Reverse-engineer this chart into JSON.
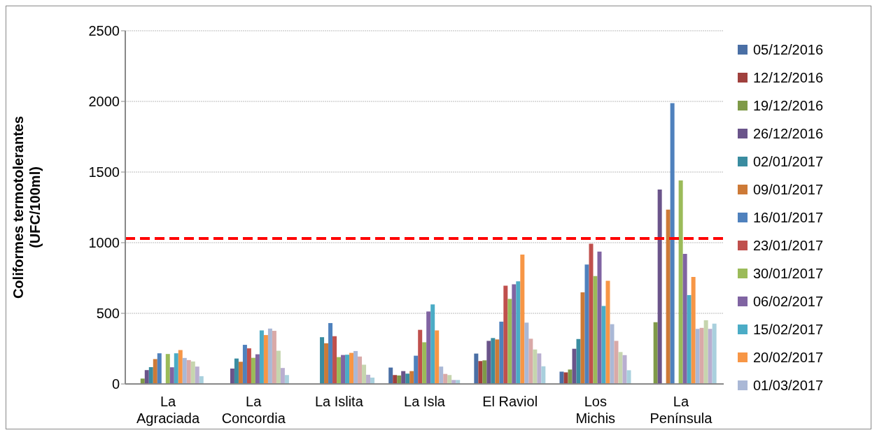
{
  "chart_data": {
    "type": "bar",
    "ylabel": "Coliformes termotolerantes\n(UFC/100ml)",
    "categories": [
      "La Agraciada",
      "La Concordia",
      "La Islita",
      "La Isla",
      "El Raviol",
      "Los Michis",
      "La Península"
    ],
    "series": [
      {
        "name": "05/12/2016",
        "color": "#4a6fa5",
        "values": [
          null,
          null,
          null,
          116,
          215,
          87,
          null
        ]
      },
      {
        "name": "12/12/2016",
        "color": "#a0403d",
        "values": [
          null,
          null,
          null,
          63,
          162,
          82,
          null
        ]
      },
      {
        "name": "19/12/2016",
        "color": "#7f9a48",
        "values": [
          38,
          null,
          null,
          60,
          167,
          102,
          437
        ]
      },
      {
        "name": "26/12/2016",
        "color": "#6a548a",
        "values": [
          98,
          109,
          null,
          91,
          305,
          249,
          1376
        ]
      },
      {
        "name": "02/01/2017",
        "color": "#3a8ca0",
        "values": [
          119,
          180,
          331,
          73,
          325,
          318,
          null
        ]
      },
      {
        "name": "09/01/2017",
        "color": "#cd7a37",
        "values": [
          176,
          157,
          288,
          91,
          315,
          649,
          1234
        ]
      },
      {
        "name": "16/01/2017",
        "color": "#4f81bd",
        "values": [
          217,
          277,
          431,
          200,
          441,
          845,
          1988
        ]
      },
      {
        "name": "23/01/2017",
        "color": "#c0504d",
        "values": [
          null,
          252,
          338,
          383,
          695,
          993,
          null
        ]
      },
      {
        "name": "30/01/2017",
        "color": "#9bbb59",
        "values": [
          212,
          185,
          190,
          295,
          602,
          764,
          1441
        ]
      },
      {
        "name": "06/02/2017",
        "color": "#8064a2",
        "values": [
          118,
          210,
          205,
          513,
          706,
          937,
          921
        ]
      },
      {
        "name": "15/02/2017",
        "color": "#4bacc6",
        "values": [
          217,
          379,
          207,
          563,
          726,
          552,
          629
        ]
      },
      {
        "name": "20/02/2017",
        "color": "#f79646",
        "values": [
          240,
          346,
          220,
          379,
          916,
          730,
          758
        ]
      },
      {
        "name": "01/03/2017",
        "color": "#aab8d6",
        "values": [
          184,
          392,
          233,
          123,
          434,
          423,
          390
        ]
      },
      {
        "color": "#d9a9a8",
        "values": [
          169,
          376,
          194,
          71,
          320,
          305,
          397
        ]
      },
      {
        "color": "#c6d5ae",
        "values": [
          159,
          235,
          136,
          63,
          244,
          226,
          451
        ]
      },
      {
        "color": "#b9aed0",
        "values": [
          123,
          113,
          65,
          28,
          216,
          204,
          390
        ]
      },
      {
        "color": "#a9d0dd",
        "values": [
          55,
          63,
          45,
          28,
          125,
          97,
          427
        ]
      }
    ],
    "ylim": [
      0,
      2500
    ],
    "yticks": [
      0,
      500,
      1000,
      1500,
      2000,
      2500
    ],
    "grid": "y",
    "legend": "right",
    "ref_lines": [
      {
        "axis": "y",
        "value": 1030,
        "color": "#ff0000",
        "line_style": "dashed"
      }
    ]
  }
}
